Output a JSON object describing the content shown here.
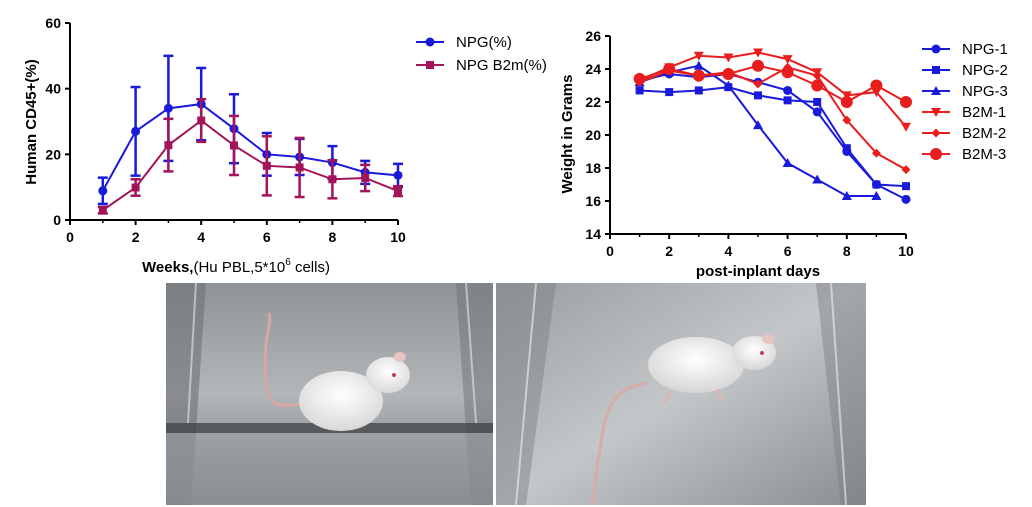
{
  "chart_data": [
    {
      "type": "line",
      "title": "",
      "xlabel_bold": "Weeks,",
      "xlabel_normal": "(Hu PBL,5*10",
      "xlabel_sup": "6",
      "xlabel_tail": " cells)",
      "ylabel": "Human CD45+(%)",
      "xlim": [
        0,
        10
      ],
      "ylim": [
        0,
        60
      ],
      "xticks": [
        "0",
        "2",
        "4",
        "6",
        "8",
        "10"
      ],
      "yticks": [
        "0",
        "20",
        "40",
        "60"
      ],
      "x": [
        1,
        2,
        3,
        4,
        5,
        6,
        7,
        8,
        9,
        10
      ],
      "series": [
        {
          "name": "NPG(%)",
          "color": "#1a1adb",
          "marker": "circle",
          "values": [
            8.9,
            27,
            34,
            35.3,
            27.8,
            20,
            19.2,
            17.5,
            14.5,
            13.6
          ],
          "error": [
            4,
            13.5,
            16,
            11,
            10.5,
            6.5,
            5.5,
            5,
            3.5,
            3.5
          ]
        },
        {
          "name": "NPG B2m(%)",
          "color": "#a3145a",
          "marker": "square",
          "values": [
            3,
            9.9,
            22.8,
            30.3,
            22.7,
            16.5,
            16,
            12.4,
            12.8,
            8.8
          ],
          "error": [
            1,
            2.5,
            8,
            6.5,
            9,
            9,
            9,
            5.8,
            4,
            1.5
          ]
        }
      ]
    },
    {
      "type": "line",
      "title": "",
      "xlabel": "post-inplant days",
      "ylabel": "Weight in Grams",
      "xlim": [
        0,
        10
      ],
      "ylim": [
        14,
        26
      ],
      "xticks": [
        "0",
        "2",
        "4",
        "6",
        "8",
        "10"
      ],
      "yticks": [
        "14",
        "16",
        "18",
        "20",
        "22",
        "24",
        "26"
      ],
      "x": [
        1,
        2,
        3,
        4,
        5,
        6,
        7,
        8,
        9,
        10
      ],
      "series": [
        {
          "name": "NPG-1",
          "color": "#1a1adb",
          "marker": "circle",
          "values": [
            23.3,
            23.7,
            23.5,
            23.7,
            23.2,
            22.7,
            21.4,
            19.0,
            17.0,
            16.1
          ]
        },
        {
          "name": "NPG-2",
          "color": "#1a1adb",
          "marker": "square",
          "values": [
            22.7,
            22.6,
            22.7,
            22.9,
            22.4,
            22.1,
            22.0,
            19.2,
            17.0,
            16.9
          ]
        },
        {
          "name": "NPG-3",
          "color": "#1a1adb",
          "marker": "triangle-up",
          "values": [
            23.2,
            23.8,
            24.2,
            23.0,
            20.6,
            18.3,
            17.3,
            16.3,
            16.3,
            null
          ]
        },
        {
          "name": "B2M-1",
          "color": "#e81e1e",
          "marker": "triangle-down",
          "values": [
            23.3,
            24.1,
            24.8,
            24.7,
            25.0,
            24.6,
            23.8,
            22.4,
            22.6,
            20.5
          ]
        },
        {
          "name": "B2M-2",
          "color": "#e81e1e",
          "marker": "diamond",
          "values": [
            23.2,
            23.9,
            23.6,
            23.8,
            23.1,
            24.1,
            23.6,
            20.9,
            18.9,
            17.9
          ]
        },
        {
          "name": "B2M-3",
          "color": "#e81e1e",
          "marker": "circle-large",
          "values": [
            23.4,
            24.0,
            23.6,
            23.7,
            24.2,
            23.8,
            23.0,
            22.0,
            23.0,
            22.0
          ]
        }
      ]
    }
  ],
  "photos": [
    {
      "name": "mouse-photo-left"
    },
    {
      "name": "mouse-photo-right"
    }
  ]
}
